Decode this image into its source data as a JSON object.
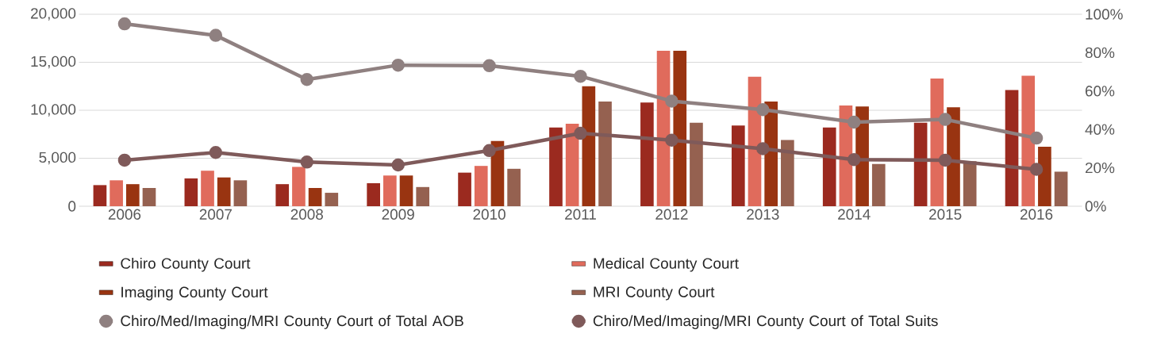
{
  "chart_data": {
    "type": "bar",
    "categories": [
      "2006",
      "2007",
      "2008",
      "2009",
      "2010",
      "2011",
      "2012",
      "2013",
      "2014",
      "2015",
      "2016"
    ],
    "series": [
      {
        "name": "Chiro County Court",
        "color": "#9b2a1f",
        "values": [
          2200,
          2900,
          2300,
          2400,
          3500,
          8200,
          10800,
          8400,
          8200,
          8700,
          12100
        ]
      },
      {
        "name": "Medical County Court",
        "color": "#e06b5c",
        "values": [
          2700,
          3700,
          4100,
          3200,
          4200,
          8600,
          16200,
          13500,
          10500,
          13300,
          13600
        ]
      },
      {
        "name": "Imaging County Court",
        "color": "#993411",
        "values": [
          2300,
          3000,
          1900,
          3200,
          6800,
          12500,
          16200,
          10900,
          10400,
          10300,
          6200
        ]
      },
      {
        "name": "MRI County Court",
        "color": "#956150",
        "values": [
          1900,
          2700,
          1400,
          2000,
          3900,
          10900,
          8700,
          6900,
          4400,
          4700,
          3600
        ]
      },
      {
        "name": "Chiro/Med/Imaging/MRI County Court of Total AOB",
        "type": "line",
        "axis": "y2",
        "marker": "circle",
        "color": "#8f8080",
        "values": [
          95,
          89,
          66,
          73.5,
          73.2,
          67.7,
          54.8,
          50.3,
          43.8,
          45.2,
          35.5
        ]
      },
      {
        "name": "Chiro/Med/Imaging/MRI County Court of Total Suits",
        "type": "line",
        "axis": "y2",
        "marker": "circle",
        "color": "#7f5a5a",
        "values": [
          24,
          28,
          23,
          21.5,
          29,
          38,
          34.4,
          30,
          24.3,
          24,
          19.2
        ]
      }
    ],
    "ylim": [
      0,
      20000
    ],
    "yticks": [
      0,
      {
        "value": 5000,
        "label": "5,000"
      },
      {
        "value": 10000,
        "label": "10,000"
      },
      {
        "value": 15000,
        "label": "15,000"
      },
      {
        "value": 20000,
        "label": "20,000"
      }
    ],
    "y2lim": [
      0,
      100
    ],
    "y2ticks": [
      {
        "value": 0,
        "label": "0%"
      },
      {
        "value": 20,
        "label": "20%"
      },
      {
        "value": 40,
        "label": "40%"
      },
      {
        "value": 60,
        "label": "60%"
      },
      {
        "value": 80,
        "label": "80%"
      },
      {
        "value": 100,
        "label": "100%"
      }
    ],
    "grid": "y",
    "legend": "bottom"
  }
}
